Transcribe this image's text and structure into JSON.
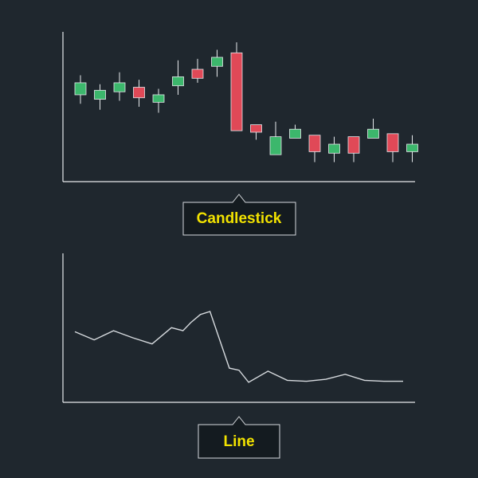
{
  "colors": {
    "background": "#1f272e",
    "axis": "#e6e9ec",
    "up": "#3cb76c",
    "down": "#e04957",
    "line": "#d6dade",
    "label_text": "#f2e200",
    "label_border": "#d6dade",
    "label_bg": "#141b20"
  },
  "chart_data": [
    {
      "type": "candlestick",
      "label": "Candlestick",
      "axes_visible": true,
      "ticks_visible": false,
      "grid": false,
      "ylim": [
        0,
        100
      ],
      "candles": [
        {
          "open": 58,
          "close": 66,
          "high": 71,
          "low": 52
        },
        {
          "open": 55,
          "close": 61,
          "high": 65,
          "low": 48
        },
        {
          "open": 60,
          "close": 66,
          "high": 73,
          "low": 54
        },
        {
          "open": 63,
          "close": 56,
          "high": 68,
          "low": 50
        },
        {
          "open": 53,
          "close": 58,
          "high": 62,
          "low": 46
        },
        {
          "open": 64,
          "close": 70,
          "high": 81,
          "low": 58
        },
        {
          "open": 75,
          "close": 69,
          "high": 82,
          "low": 66
        },
        {
          "open": 77,
          "close": 83,
          "high": 88,
          "low": 70
        },
        {
          "open": 86,
          "close": 34,
          "high": 93,
          "low": 34
        },
        {
          "open": 38,
          "close": 33,
          "high": 38,
          "low": 28
        },
        {
          "open": 18,
          "close": 30,
          "high": 40,
          "low": 18
        },
        {
          "open": 29,
          "close": 35,
          "high": 38,
          "low": 29
        },
        {
          "open": 31,
          "close": 20,
          "high": 31,
          "low": 13
        },
        {
          "open": 19,
          "close": 25,
          "high": 30,
          "low": 13
        },
        {
          "open": 30,
          "close": 19,
          "high": 30,
          "low": 13
        },
        {
          "open": 29,
          "close": 35,
          "high": 42,
          "low": 29
        },
        {
          "open": 32,
          "close": 20,
          "high": 32,
          "low": 13
        },
        {
          "open": 20,
          "close": 25,
          "high": 31,
          "low": 13
        }
      ]
    },
    {
      "type": "line",
      "label": "Line",
      "axes_visible": true,
      "ticks_visible": false,
      "grid": false,
      "ylim": [
        0,
        100
      ],
      "x": [
        0,
        1,
        2,
        3,
        4,
        5,
        5.6,
        6,
        6.5,
        7,
        8,
        8.5,
        9,
        10,
        11,
        12,
        13,
        14,
        15,
        16,
        17
      ],
      "values": [
        54,
        46,
        55,
        48,
        42,
        58,
        55,
        63,
        71,
        74,
        18,
        16,
        4,
        15,
        6,
        5,
        7,
        12,
        6,
        5,
        5
      ]
    }
  ]
}
